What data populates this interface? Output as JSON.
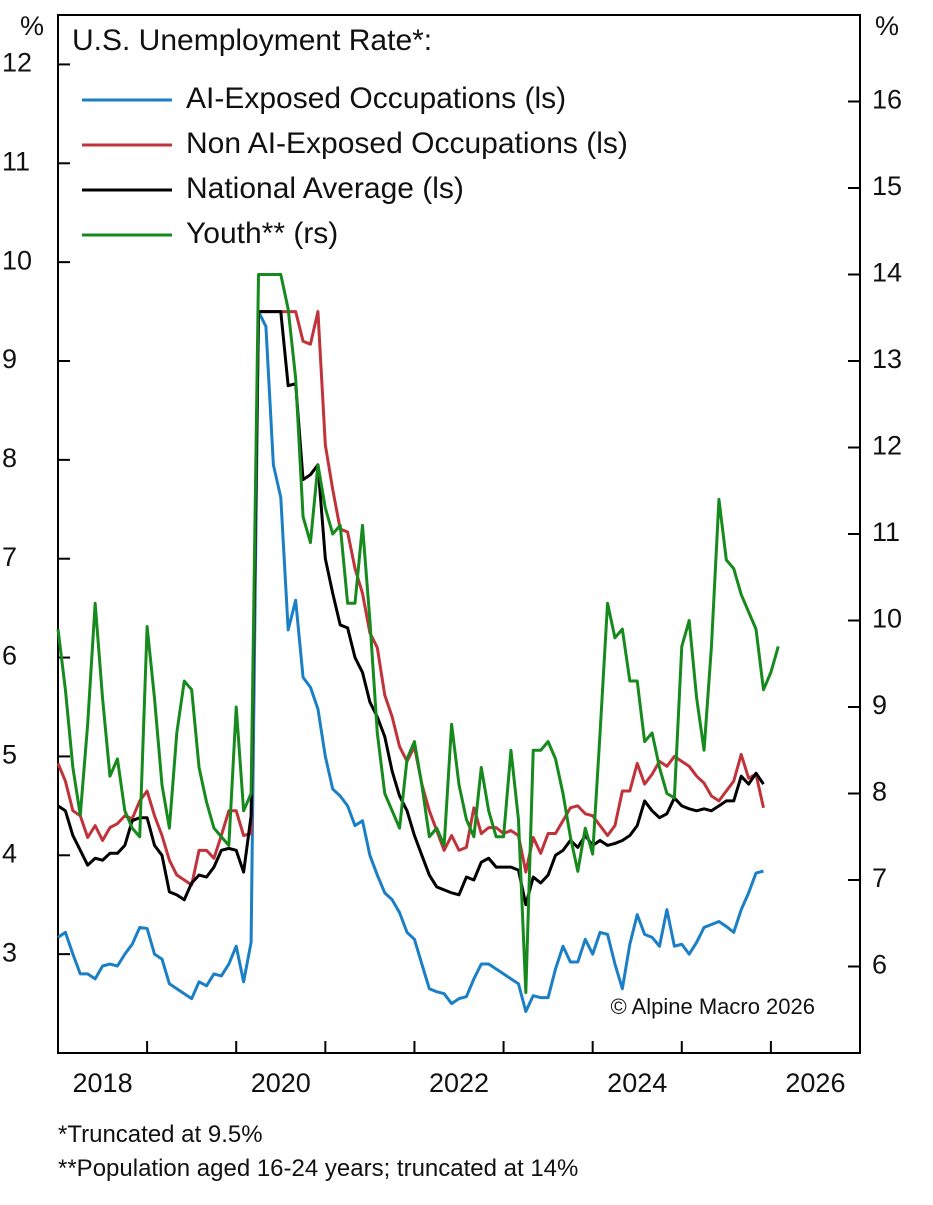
{
  "chart_data": {
    "type": "line",
    "title": "U.S. Unemployment Rate*:",
    "y_unit": "%",
    "y2_unit": "%",
    "annotation": "© Alpine Macro 2026",
    "footnotes": [
      "*Truncated at 9.5%",
      "**Population aged 16-24 years; truncated at 14%"
    ],
    "legend": "upper left",
    "xlim": [
      2018,
      2027
    ],
    "xticks": [
      {
        "value": 2018.5,
        "label": "2018"
      },
      {
        "value": 2020.5,
        "label": "2020"
      },
      {
        "value": 2022.5,
        "label": "2022"
      },
      {
        "value": 2024.5,
        "label": "2024"
      },
      {
        "value": 2026.5,
        "label": "2026"
      }
    ],
    "x_minor_ticks": [
      2019,
      2020,
      2021,
      2022,
      2023,
      2024,
      2025,
      2026
    ],
    "ylim": [
      2,
      12.5
    ],
    "yticks": [
      3,
      4,
      5,
      6,
      7,
      8,
      9,
      10,
      11,
      12
    ],
    "y2lim": [
      5,
      17
    ],
    "y2ticks": [
      6,
      7,
      8,
      9,
      10,
      11,
      12,
      13,
      14,
      15,
      16
    ],
    "x": [
      2018,
      2018.083,
      2018.167,
      2018.25,
      2018.333,
      2018.417,
      2018.5,
      2018.583,
      2018.667,
      2018.75,
      2018.833,
      2018.917,
      2019,
      2019.083,
      2019.167,
      2019.25,
      2019.333,
      2019.417,
      2019.5,
      2019.583,
      2019.667,
      2019.75,
      2019.833,
      2019.917,
      2020,
      2020.083,
      2020.167,
      2020.25,
      2020.333,
      2020.417,
      2020.5,
      2020.583,
      2020.667,
      2020.75,
      2020.833,
      2020.917,
      2021,
      2021.083,
      2021.167,
      2021.25,
      2021.333,
      2021.417,
      2021.5,
      2021.583,
      2021.667,
      2021.75,
      2021.833,
      2021.917,
      2022,
      2022.083,
      2022.167,
      2022.25,
      2022.333,
      2022.417,
      2022.5,
      2022.583,
      2022.667,
      2022.75,
      2022.833,
      2022.917,
      2023,
      2023.083,
      2023.167,
      2023.25,
      2023.333,
      2023.417,
      2023.5,
      2023.583,
      2023.667,
      2023.75,
      2023.833,
      2023.917,
      2024,
      2024.083,
      2024.167,
      2024.25,
      2024.333,
      2024.417,
      2024.5,
      2024.583,
      2024.667,
      2024.75,
      2024.833,
      2024.917,
      2025,
      2025.083,
      2025.167,
      2025.25,
      2025.333,
      2025.417,
      2025.5,
      2025.583,
      2025.667,
      2025.75,
      2025.833,
      2025.917,
      2026,
      2026.083
    ],
    "series": [
      {
        "name": "AI-Exposed Occupations (ls)",
        "color": "#1a7fc4",
        "values": [
          3.17,
          3.22,
          3.0,
          2.8,
          2.8,
          2.75,
          2.88,
          2.9,
          2.88,
          3.0,
          3.1,
          3.27,
          3.26,
          3.0,
          2.95,
          2.7,
          2.65,
          2.6,
          2.55,
          2.72,
          2.68,
          2.8,
          2.78,
          2.9,
          3.08,
          2.72,
          3.12,
          9.5,
          9.35,
          7.95,
          7.62,
          6.28,
          6.58,
          5.8,
          5.7,
          5.48,
          5.0,
          4.67,
          4.6,
          4.5,
          4.3,
          4.35,
          4.0,
          3.8,
          3.62,
          3.55,
          3.42,
          3.22,
          3.15,
          2.9,
          2.65,
          2.62,
          2.6,
          2.5,
          2.55,
          2.57,
          2.75,
          2.9,
          2.9,
          2.85,
          2.8,
          2.75,
          2.7,
          2.42,
          2.58,
          2.56,
          2.56,
          2.85,
          3.08,
          2.92,
          2.92,
          3.15,
          3.0,
          3.22,
          3.2,
          2.9,
          2.65,
          3.1,
          3.4,
          3.2,
          3.17,
          3.08,
          3.45,
          3.08,
          3.1,
          3.0,
          3.12,
          3.27,
          3.3,
          3.33,
          3.28,
          3.22,
          3.45,
          3.62,
          3.82,
          3.84,
          null,
          null
        ]
      },
      {
        "name": "Non AI-Exposed Occupations (ls)",
        "color": "#c0333b",
        "values": [
          4.93,
          4.75,
          4.45,
          4.4,
          4.18,
          4.3,
          4.15,
          4.28,
          4.32,
          4.4,
          4.37,
          4.55,
          4.65,
          4.4,
          4.2,
          3.95,
          3.8,
          3.75,
          3.7,
          4.05,
          4.05,
          3.97,
          4.2,
          4.45,
          4.45,
          4.2,
          4.22,
          9.5,
          9.5,
          9.5,
          9.5,
          9.5,
          9.5,
          9.2,
          9.17,
          9.5,
          8.15,
          7.7,
          7.3,
          7.27,
          6.9,
          6.65,
          6.25,
          6.1,
          5.62,
          5.4,
          5.1,
          4.95,
          5.1,
          4.72,
          4.45,
          4.25,
          4.05,
          4.2,
          4.05,
          4.08,
          4.48,
          4.22,
          4.28,
          4.28,
          4.22,
          4.25,
          4.2,
          3.83,
          4.18,
          4.02,
          4.22,
          4.22,
          4.35,
          4.48,
          4.5,
          4.42,
          4.4,
          4.3,
          4.2,
          4.3,
          4.65,
          4.65,
          4.93,
          4.72,
          4.82,
          4.95,
          4.9,
          5.0,
          4.95,
          4.9,
          4.8,
          4.73,
          4.6,
          4.55,
          4.65,
          4.75,
          5.02,
          4.78,
          4.82,
          4.48,
          null,
          null
        ]
      },
      {
        "name": "National Average (ls)",
        "color": "#000000",
        "values": [
          4.5,
          4.45,
          4.2,
          4.05,
          3.9,
          3.97,
          3.95,
          4.02,
          4.02,
          4.1,
          4.35,
          4.38,
          4.38,
          4.1,
          4.0,
          3.63,
          3.6,
          3.55,
          3.72,
          3.8,
          3.78,
          3.88,
          4.05,
          4.07,
          4.05,
          3.83,
          4.4,
          9.5,
          9.5,
          9.5,
          9.5,
          8.75,
          8.77,
          7.8,
          7.85,
          7.95,
          7.0,
          6.65,
          6.33,
          6.3,
          6.0,
          5.85,
          5.55,
          5.4,
          5.2,
          4.85,
          4.6,
          4.45,
          4.2,
          4.0,
          3.8,
          3.68,
          3.65,
          3.62,
          3.6,
          3.78,
          3.75,
          3.93,
          3.97,
          3.88,
          3.88,
          3.88,
          3.85,
          3.5,
          3.78,
          3.72,
          3.8,
          4.0,
          4.05,
          4.15,
          4.08,
          4.2,
          4.1,
          4.15,
          4.1,
          4.12,
          4.15,
          4.2,
          4.3,
          4.55,
          4.45,
          4.38,
          4.42,
          4.58,
          4.5,
          4.47,
          4.45,
          4.47,
          4.45,
          4.5,
          4.55,
          4.55,
          4.8,
          4.72,
          4.83,
          4.72,
          null,
          null
        ]
      },
      {
        "name": "Youth** (rs)",
        "color": "#178a1d",
        "axis": "y2",
        "values": [
          9.9,
          9.2,
          8.3,
          7.75,
          8.8,
          10.2,
          9.1,
          8.2,
          8.4,
          7.8,
          7.6,
          7.5,
          9.93,
          9.1,
          8.1,
          7.6,
          8.7,
          9.3,
          9.2,
          8.3,
          7.9,
          7.6,
          7.5,
          7.4,
          9.0,
          7.8,
          8.0,
          14.0,
          14.0,
          14.0,
          14.0,
          13.6,
          12.8,
          11.2,
          10.9,
          11.8,
          11.3,
          11.0,
          11.1,
          10.2,
          10.2,
          11.1,
          10.0,
          8.7,
          8.0,
          7.8,
          7.6,
          8.4,
          8.6,
          8.1,
          7.5,
          7.6,
          7.4,
          8.8,
          8.1,
          7.7,
          7.5,
          8.3,
          7.8,
          7.5,
          7.5,
          8.5,
          7.7,
          5.7,
          8.5,
          8.5,
          8.6,
          8.4,
          8.0,
          7.5,
          7.1,
          7.6,
          7.3,
          8.7,
          10.2,
          9.8,
          9.9,
          9.3,
          9.3,
          8.6,
          8.7,
          8.3,
          8.0,
          7.95,
          9.7,
          10.0,
          9.1,
          8.5,
          9.7,
          11.4,
          10.7,
          10.6,
          10.3,
          10.1,
          9.9,
          9.2,
          9.4,
          9.7
        ]
      }
    ]
  }
}
